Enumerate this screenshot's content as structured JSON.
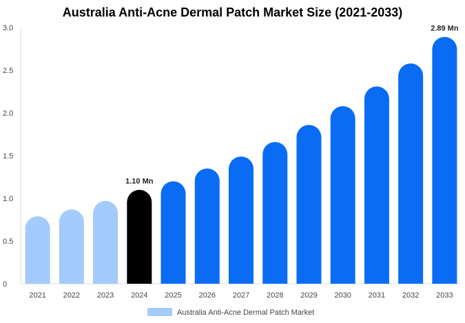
{
  "chart_data": {
    "type": "bar",
    "title": "Australia Anti-Acne Dermal Patch Market Size (2021-2033)",
    "categories": [
      "2021",
      "2022",
      "2023",
      "2024",
      "2025",
      "2026",
      "2027",
      "2028",
      "2029",
      "2030",
      "2031",
      "2032",
      "2033"
    ],
    "series": [
      {
        "name": "Australia Anti-Acne Dermal Patch Market",
        "values": [
          0.79,
          0.87,
          0.97,
          1.1,
          1.2,
          1.35,
          1.49,
          1.66,
          1.86,
          2.08,
          2.31,
          2.58,
          2.89
        ]
      }
    ],
    "data_labels": {
      "2024": "1.10 Mn",
      "2033": "2.89 Mn"
    },
    "ylim": [
      0,
      3.0
    ],
    "yticks": [
      "0",
      "0.5",
      "1.0",
      "1.5",
      "2.0",
      "2.5",
      "3.0"
    ],
    "ytick_values": [
      0,
      0.5,
      1.0,
      1.5,
      2.0,
      2.5,
      3.0
    ],
    "xlabel": "",
    "ylabel": "",
    "grid": false,
    "legend_position": "bottom-center",
    "colors": {
      "historical": "#a3cbfb",
      "base_year": "#000000",
      "forecast": "#0a6cf5",
      "legend_swatch": "#a3cbfb"
    },
    "bar_color_groups": [
      "historical",
      "historical",
      "historical",
      "base_year",
      "forecast",
      "forecast",
      "forecast",
      "forecast",
      "forecast",
      "forecast",
      "forecast",
      "forecast",
      "forecast"
    ]
  }
}
